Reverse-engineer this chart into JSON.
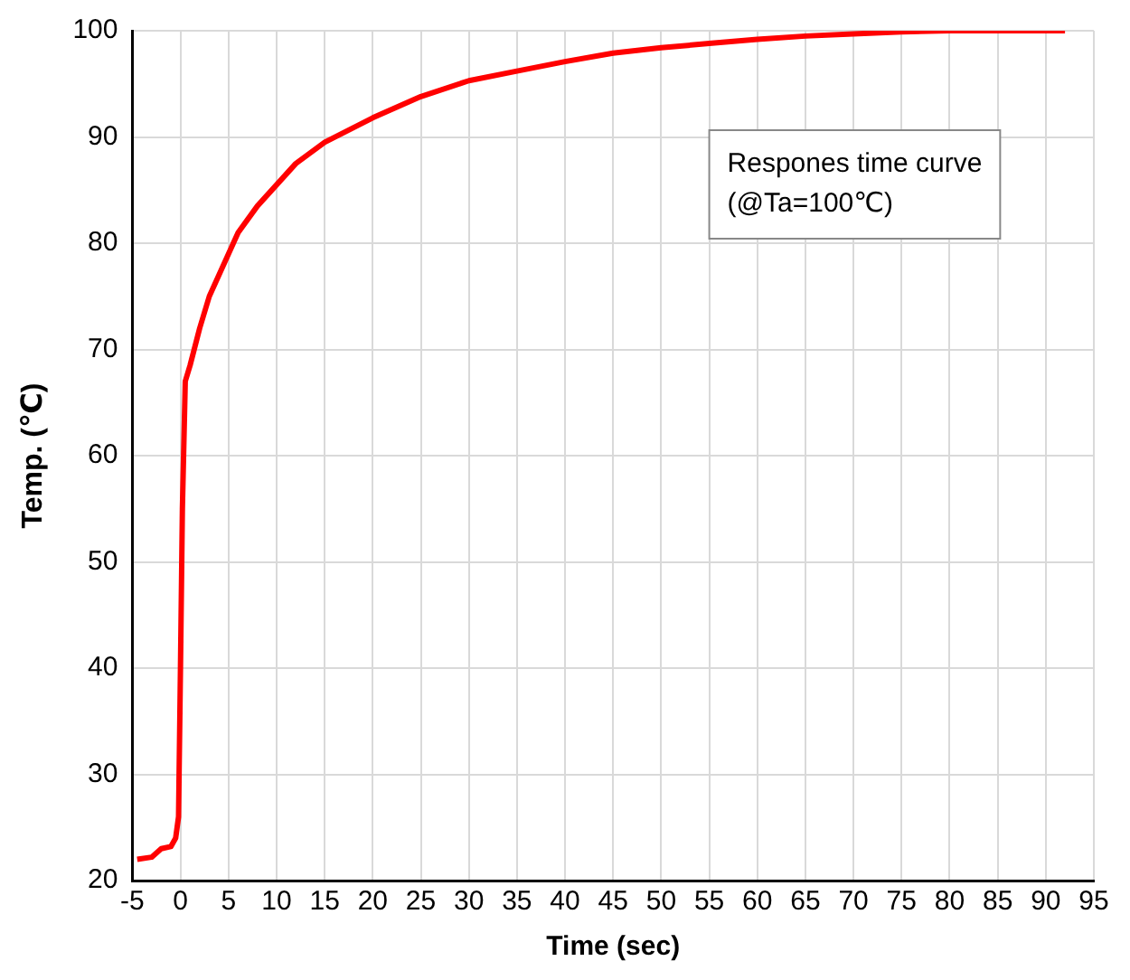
{
  "chart_data": {
    "type": "line",
    "xlabel": "Time (sec)",
    "ylabel": "Temp. (℃)",
    "annotations": [
      "Respones time curve (@Ta=100℃)"
    ],
    "x": [
      -4.5,
      -3,
      -2,
      -1,
      -0.5,
      -0.2,
      0,
      0.2,
      0.5,
      1,
      2,
      3,
      4,
      5,
      6,
      8,
      10,
      12,
      15,
      20,
      25,
      30,
      35,
      40,
      45,
      50,
      55,
      60,
      65,
      70,
      75,
      80,
      92
    ],
    "series": [
      {
        "color": "#ff0000",
        "values": [
          22,
          22.2,
          23,
          23.2,
          24,
          26,
          40,
          55,
          67,
          68.5,
          72,
          75,
          77,
          79,
          81,
          83.5,
          85.5,
          87.5,
          89.5,
          91.8,
          93.8,
          95.3,
          96.2,
          97.1,
          97.9,
          98.4,
          98.8,
          99.2,
          99.5,
          99.7,
          99.9,
          100,
          100
        ]
      }
    ],
    "xlim": [
      -5,
      95
    ],
    "xticks": [
      -5,
      0,
      5,
      10,
      15,
      20,
      25,
      30,
      35,
      40,
      45,
      50,
      55,
      60,
      65,
      70,
      75,
      80,
      85,
      90,
      95
    ],
    "ylim": [
      20,
      100
    ],
    "yticks": [
      20,
      30,
      40,
      50,
      60,
      70,
      80,
      90,
      100
    ],
    "grid": true,
    "legend": false,
    "marker": "none",
    "line_style": "solid"
  }
}
